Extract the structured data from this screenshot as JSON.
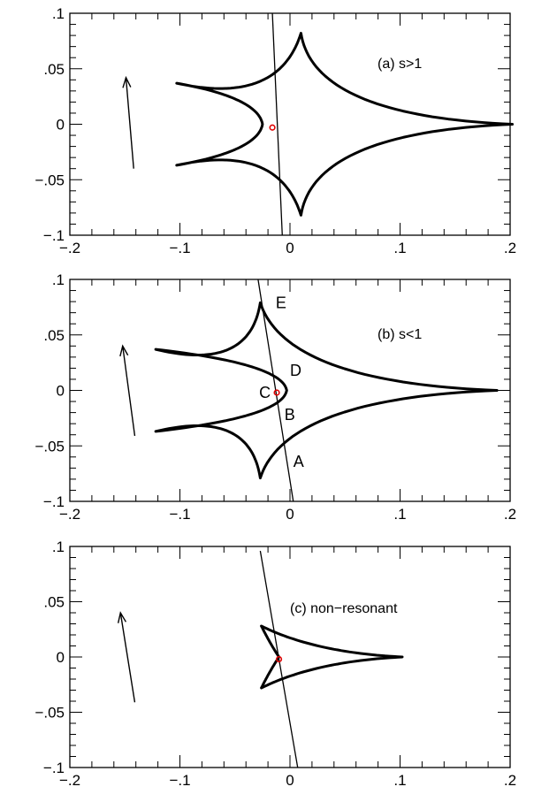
{
  "chart_data": [
    {
      "type": "line",
      "label": "(a) s>1",
      "xlim": [
        -0.2,
        0.2
      ],
      "ylim": [
        -0.1,
        0.1
      ],
      "x_ticks": [
        -0.2,
        -0.1,
        0,
        0.1,
        0.2
      ],
      "x_tick_labels": [
        "−.2",
        "−.1",
        "0",
        ".1",
        ".2"
      ],
      "y_ticks": [
        0.1,
        0.05,
        0,
        -0.05,
        -0.1
      ],
      "y_tick_labels": [
        ".1",
        ".05",
        "0",
        "−.05",
        "−.1"
      ],
      "caustic": {
        "cusps": [
          [
            -0.103,
            0.037
          ],
          [
            0.01,
            0.082
          ],
          [
            0.202,
            0.0
          ],
          [
            0.01,
            -0.082
          ],
          [
            -0.103,
            -0.037
          ]
        ],
        "fold_tip": [
          -0.025,
          0.0
        ]
      },
      "trajectory": [
        [
          -0.016,
          0.1
        ],
        [
          -0.007,
          -0.1
        ]
      ],
      "source_point": [
        -0.016,
        -0.003
      ],
      "arrow": [
        [
          -0.142,
          -0.04
        ],
        [
          -0.149,
          0.042
        ]
      ],
      "point_labels": []
    },
    {
      "type": "line",
      "label": "(b) s<1",
      "xlim": [
        -0.2,
        0.2
      ],
      "ylim": [
        -0.1,
        0.1
      ],
      "x_ticks": [
        -0.2,
        -0.1,
        0,
        0.1,
        0.2
      ],
      "x_tick_labels": [
        "−.2",
        "−.1",
        "0",
        ".1",
        ".2"
      ],
      "y_ticks": [
        0.1,
        0.05,
        0,
        -0.05,
        -0.1
      ],
      "y_tick_labels": [
        ".1",
        ".05",
        "0",
        "−.05",
        "−.1"
      ],
      "caustic": {
        "cusps": [
          [
            -0.122,
            0.037
          ],
          [
            -0.027,
            0.079
          ],
          [
            0.188,
            0.0
          ],
          [
            -0.027,
            -0.079
          ],
          [
            -0.122,
            -0.037
          ]
        ],
        "fold_tip": [
          -0.003,
          0.0
        ]
      },
      "trajectory": [
        [
          -0.029,
          0.1
        ],
        [
          0.003,
          -0.1
        ]
      ],
      "source_point": [
        -0.012,
        -0.002
      ],
      "arrow": [
        [
          -0.141,
          -0.041
        ],
        [
          -0.152,
          0.04
        ]
      ],
      "point_labels": [
        {
          "text": "E",
          "x": -0.013,
          "y": 0.079
        },
        {
          "text": "D",
          "x": 0.0,
          "y": 0.018
        },
        {
          "text": "C",
          "x": -0.028,
          "y": -0.002
        },
        {
          "text": "B",
          "x": -0.005,
          "y": -0.022
        },
        {
          "text": "A",
          "x": 0.003,
          "y": -0.064
        }
      ]
    },
    {
      "type": "line",
      "label": "(c) non−resonant",
      "xlim": [
        -0.2,
        0.2
      ],
      "ylim": [
        -0.1,
        0.1
      ],
      "x_ticks": [
        -0.2,
        -0.1,
        0,
        0.1,
        0.2
      ],
      "x_tick_labels": [
        "−.2",
        "−.1",
        "0",
        ".1",
        ".2"
      ],
      "y_ticks": [
        0.1,
        0.05,
        0,
        -0.05,
        -0.1
      ],
      "y_tick_labels": [
        ".1",
        ".05",
        "0",
        "−.05",
        "−.1"
      ],
      "caustic": {
        "cusps": [
          [
            -0.026,
            0.028
          ],
          [
            0.102,
            0.0
          ],
          [
            -0.026,
            -0.028
          ]
        ],
        "fold_tip": [
          -0.01,
          0.0
        ]
      },
      "trajectory": [
        [
          -0.027,
          0.096
        ],
        [
          0.007,
          -0.1
        ]
      ],
      "source_point": [
        -0.01,
        -0.002
      ],
      "arrow": [
        [
          -0.141,
          -0.041
        ],
        [
          -0.154,
          0.04
        ]
      ],
      "point_labels": []
    }
  ]
}
